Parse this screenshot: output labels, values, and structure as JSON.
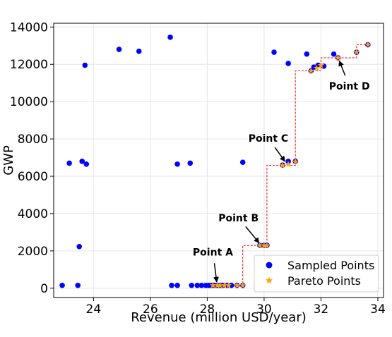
{
  "chart_data": {
    "type": "scatter",
    "xlabel": "Revenue (million USD/year)",
    "ylabel": "GWP",
    "xlim": [
      22.6,
      34.2
    ],
    "ylim": [
      -500,
      14200
    ],
    "xticks": [
      "24",
      "26",
      "28",
      "30",
      "32",
      "34"
    ],
    "yticks": [
      "0",
      "2000",
      "4000",
      "6000",
      "8000",
      "10000",
      "12000",
      "14000"
    ],
    "grid": true,
    "legend_position": "bottom-right",
    "colors": {
      "sampled": "#0000ff",
      "pareto": "#ffa500",
      "pareto_line": "#ff0000",
      "grid": "#e6e6e6"
    },
    "series": [
      {
        "name": "Sampled Points",
        "marker": "circle",
        "points": [
          [
            22.9,
            150
          ],
          [
            23.45,
            150
          ],
          [
            23.5,
            2230
          ],
          [
            23.15,
            6700
          ],
          [
            23.6,
            6800
          ],
          [
            23.75,
            6650
          ],
          [
            23.7,
            11950
          ],
          [
            24.9,
            12800
          ],
          [
            25.6,
            12700
          ],
          [
            26.7,
            13450
          ],
          [
            26.95,
            6650
          ],
          [
            27.4,
            6700
          ],
          [
            29.25,
            6750
          ],
          [
            26.75,
            150
          ],
          [
            26.95,
            150
          ],
          [
            27.45,
            150
          ],
          [
            27.65,
            150
          ],
          [
            27.8,
            150
          ],
          [
            27.95,
            150
          ],
          [
            28.05,
            150
          ],
          [
            28.15,
            150
          ],
          [
            28.25,
            150
          ],
          [
            28.35,
            150
          ],
          [
            28.45,
            150
          ],
          [
            28.55,
            150
          ],
          [
            28.7,
            150
          ],
          [
            28.85,
            150
          ],
          [
            29.05,
            150
          ],
          [
            29.25,
            150
          ],
          [
            29.85,
            2300
          ],
          [
            30.0,
            2300
          ],
          [
            30.1,
            2300
          ],
          [
            30.65,
            6600
          ],
          [
            30.85,
            6800
          ],
          [
            31.1,
            6800
          ],
          [
            30.35,
            12650
          ],
          [
            30.85,
            12050
          ],
          [
            31.5,
            12550
          ],
          [
            32.45,
            12550
          ],
          [
            31.65,
            11650
          ],
          [
            31.75,
            11850
          ],
          [
            31.9,
            11950
          ],
          [
            32.1,
            11900
          ],
          [
            32.6,
            12350
          ],
          [
            33.25,
            12650
          ],
          [
            33.65,
            13050
          ]
        ]
      },
      {
        "name": "Pareto Points",
        "marker": "star",
        "points": [
          [
            28.2,
            150
          ],
          [
            28.35,
            150
          ],
          [
            28.45,
            150
          ],
          [
            28.6,
            150
          ],
          [
            28.75,
            150
          ],
          [
            29.05,
            150
          ],
          [
            29.25,
            150
          ],
          [
            29.85,
            2290
          ],
          [
            30.0,
            2290
          ],
          [
            30.1,
            2290
          ],
          [
            30.65,
            6580
          ],
          [
            30.85,
            6640
          ],
          [
            31.1,
            6780
          ],
          [
            31.65,
            11650
          ],
          [
            31.85,
            11800
          ],
          [
            32.0,
            11950
          ],
          [
            32.6,
            12350
          ],
          [
            33.25,
            12650
          ],
          [
            33.65,
            13050
          ]
        ]
      }
    ],
    "pareto_front": [
      [
        28.2,
        150
      ],
      [
        29.25,
        150
      ],
      [
        29.25,
        2290
      ],
      [
        30.1,
        2290
      ],
      [
        30.1,
        6580
      ],
      [
        31.1,
        6580
      ],
      [
        31.1,
        11650
      ],
      [
        32.0,
        11650
      ],
      [
        32.0,
        12350
      ],
      [
        33.25,
        12350
      ],
      [
        33.25,
        13050
      ],
      [
        33.65,
        13050
      ]
    ],
    "annotations": [
      {
        "text": "Point A",
        "point": [
          28.35,
          150
        ],
        "label_pos": [
          28.2,
          1750
        ]
      },
      {
        "text": "Point B",
        "point": [
          29.9,
          2290
        ],
        "label_pos": [
          29.1,
          3580
        ]
      },
      {
        "text": "Point C",
        "point": [
          30.8,
          6650
        ],
        "label_pos": [
          30.15,
          7850
        ]
      },
      {
        "text": "Point D",
        "point": [
          32.6,
          12350
        ],
        "label_pos": [
          33.0,
          10650
        ]
      }
    ]
  }
}
